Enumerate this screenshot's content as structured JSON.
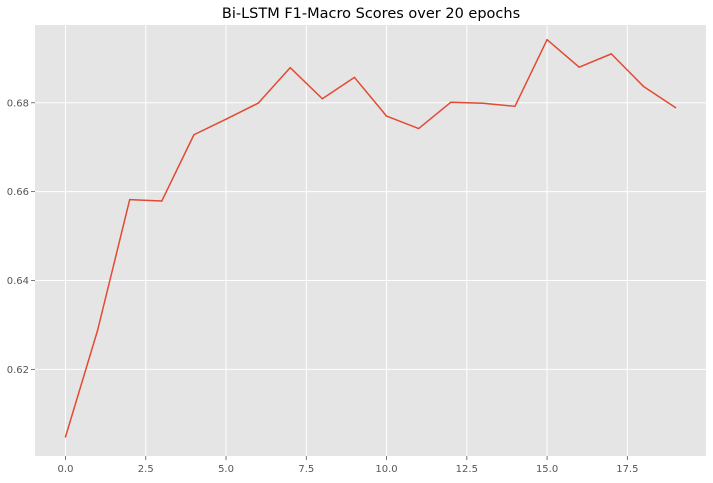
{
  "chart_data": {
    "type": "line",
    "title": "Bi-LSTM F1-Macro Scores over 20 epochs",
    "xlabel": "",
    "ylabel": "",
    "xlim": [
      -0.95,
      19.95
    ],
    "ylim": [
      0.6005,
      0.6975
    ],
    "xticks": [
      0.0,
      2.5,
      5.0,
      7.5,
      10.0,
      12.5,
      15.0,
      17.5
    ],
    "xtick_labels": [
      "0.0",
      "2.5",
      "5.0",
      "7.5",
      "10.0",
      "12.5",
      "15.0",
      "17.5"
    ],
    "yticks": [
      0.62,
      0.64,
      0.66,
      0.68
    ],
    "ytick_labels": [
      "0.62",
      "0.64",
      "0.66",
      "0.68"
    ],
    "grid": true,
    "legend": "none",
    "colors": {
      "line": "#E24A33",
      "background": "#E5E5E5",
      "grid": "#FFFFFF"
    },
    "series": [
      {
        "x": [
          0,
          1,
          2,
          3,
          4,
          5,
          6,
          7,
          8,
          9,
          10,
          11,
          12,
          13,
          14,
          15,
          16,
          17,
          18,
          19
        ],
        "values": [
          0.6048,
          0.6288,
          0.6582,
          0.6579,
          0.6728,
          0.6763,
          0.6799,
          0.6879,
          0.6809,
          0.6857,
          0.677,
          0.6742,
          0.6801,
          0.6799,
          0.6792,
          0.6942,
          0.688,
          0.691,
          0.6837,
          0.6789
        ]
      }
    ]
  }
}
